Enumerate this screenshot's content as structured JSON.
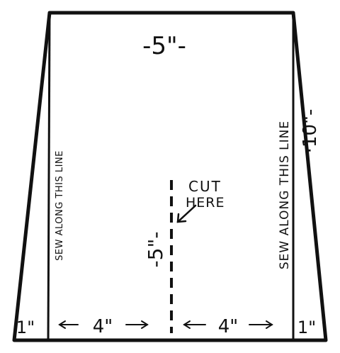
{
  "labels": {
    "top_width": "-5\"-",
    "side_height": "·10\"-",
    "cut_length": "-5\"-",
    "cut_here_1": "CUT",
    "cut_here_2": "HERE",
    "sew_left": "SEW ALONG THIS LINE",
    "sew_right": "SEW ALONG THIS LINE",
    "bottom_left_margin": "1\"",
    "bottom_left_span": "4\"",
    "bottom_right_span": "4\"",
    "bottom_right_margin": "1\""
  },
  "colors": {
    "ink": "#111111",
    "paper": "#ffffff"
  }
}
